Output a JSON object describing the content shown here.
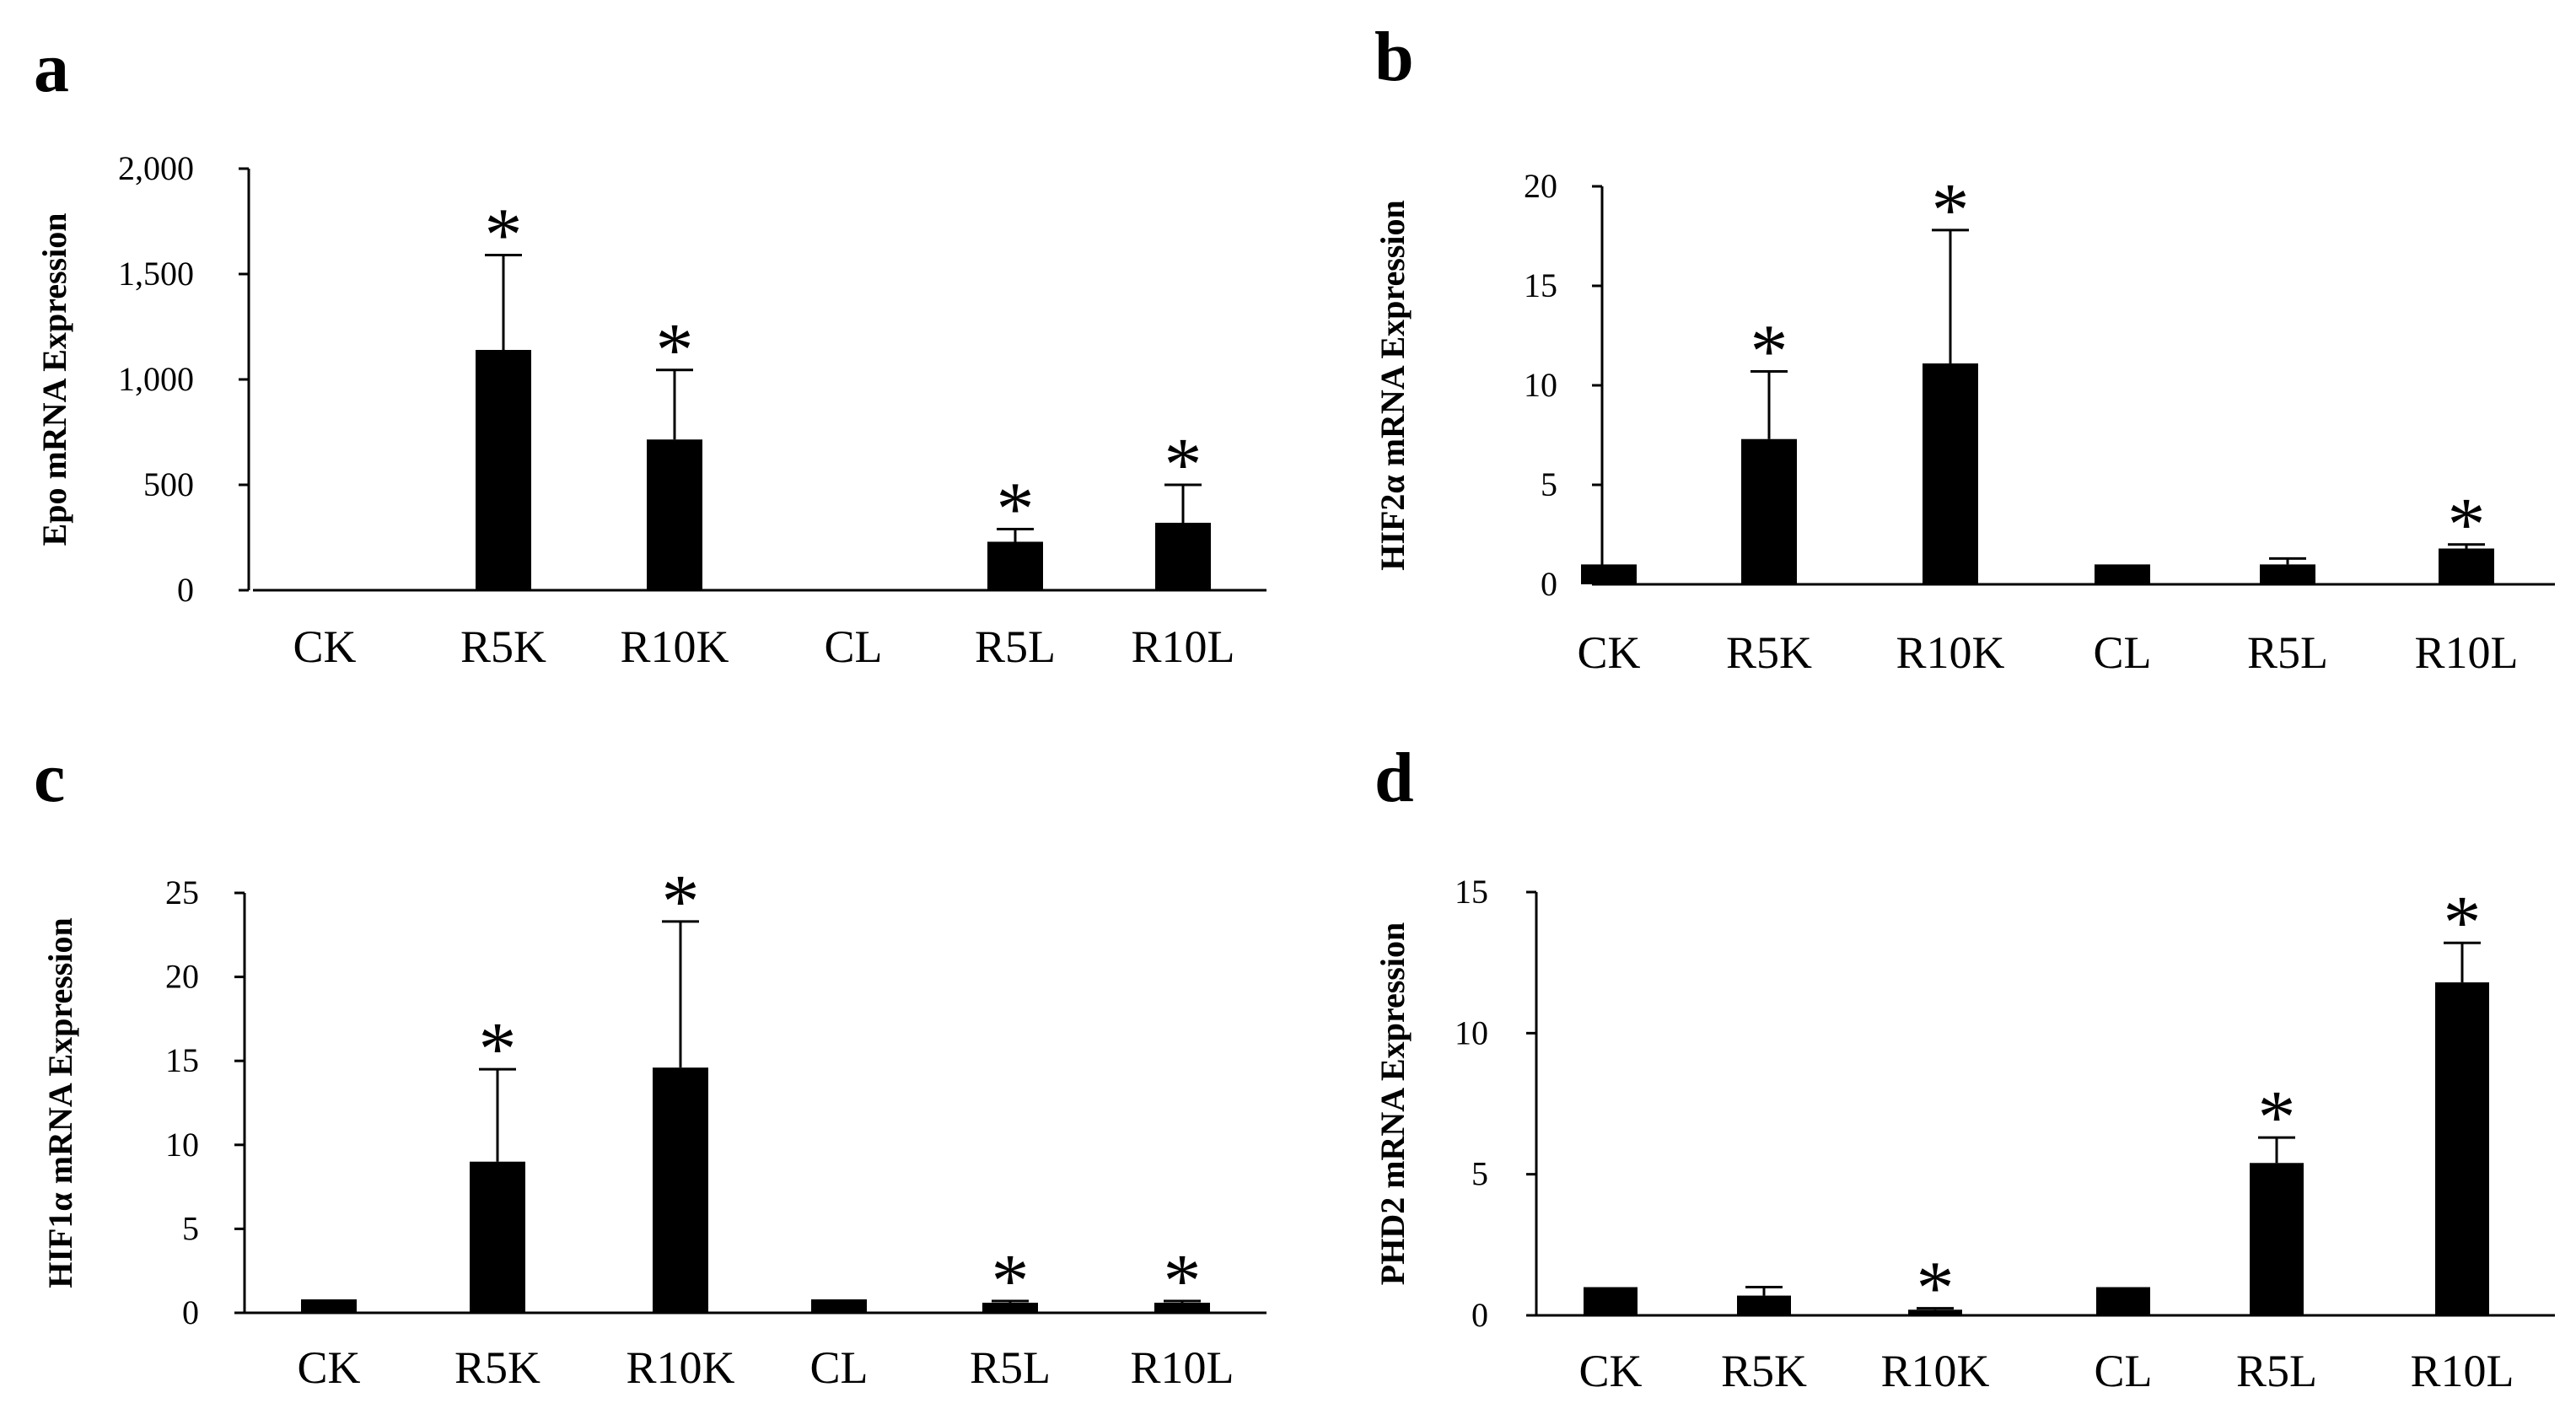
{
  "chart_data": [
    {
      "type": "bar",
      "panel": "a",
      "title": "",
      "xlabel": "",
      "ylabel": "Epo mRNA Expression",
      "categories": [
        "CK",
        "R5K",
        "R10K",
        "CL",
        "R5L",
        "R10L"
      ],
      "values": [
        0,
        1140,
        715,
        0,
        230,
        320
      ],
      "errors": [
        0,
        450,
        330,
        0,
        60,
        180
      ],
      "significant": [
        false,
        true,
        true,
        false,
        true,
        true
      ],
      "significance_marker": "*",
      "ylim": [
        0,
        2000
      ],
      "yticks": [
        0,
        500,
        1000,
        1500,
        2000
      ],
      "ytick_labels": [
        "0",
        "500",
        "1,000",
        "1,500",
        "2,000"
      ],
      "color": "#000000"
    },
    {
      "type": "bar",
      "panel": "b",
      "title": "",
      "xlabel": "",
      "ylabel": "HIF2α mRNA Expression",
      "categories": [
        "CK",
        "R5K",
        "R10K",
        "CL",
        "R5L",
        "R10L"
      ],
      "values": [
        1,
        7.3,
        11.1,
        1,
        1,
        1.8
      ],
      "errors": [
        0,
        3.4,
        6.7,
        0,
        0.3,
        0.2
      ],
      "significant": [
        false,
        true,
        true,
        false,
        false,
        true
      ],
      "significance_marker": "*",
      "ylim": [
        0,
        20
      ],
      "yticks": [
        0,
        5,
        10,
        15,
        20
      ],
      "ytick_labels": [
        "0",
        "5",
        "10",
        "15",
        "20"
      ],
      "color": "#000000"
    },
    {
      "type": "bar",
      "panel": "c",
      "title": "",
      "xlabel": "",
      "ylabel": "HIF1α mRNA Expression",
      "categories": [
        "CK",
        "R5K",
        "R10K",
        "CL",
        "R5L",
        "R10L"
      ],
      "values": [
        0.8,
        9,
        14.6,
        0.8,
        0.6,
        0.6
      ],
      "errors": [
        0,
        5.5,
        8.7,
        0,
        0.1,
        0.1
      ],
      "significant": [
        false,
        true,
        true,
        false,
        true,
        true
      ],
      "significance_marker": "*",
      "ylim": [
        0,
        25
      ],
      "yticks": [
        0,
        5,
        10,
        15,
        20,
        25
      ],
      "ytick_labels": [
        "0",
        "5",
        "10",
        "15",
        "20",
        "25"
      ],
      "color": "#000000"
    },
    {
      "type": "bar",
      "panel": "d",
      "title": "",
      "xlabel": "",
      "ylabel": "PHD2 mRNA Expression",
      "categories": [
        "CK",
        "R5K",
        "R10K",
        "CL",
        "R5L",
        "R10L"
      ],
      "values": [
        1,
        0.7,
        0.2,
        1,
        5.4,
        11.8
      ],
      "errors": [
        0,
        0.3,
        0.05,
        0,
        0.9,
        1.4
      ],
      "significant": [
        false,
        false,
        true,
        false,
        true,
        true
      ],
      "significance_marker": "*",
      "ylim": [
        0,
        15
      ],
      "yticks": [
        0,
        5,
        10,
        15
      ],
      "ytick_labels": [
        "0",
        "5",
        "10",
        "15"
      ],
      "color": "#000000"
    }
  ]
}
